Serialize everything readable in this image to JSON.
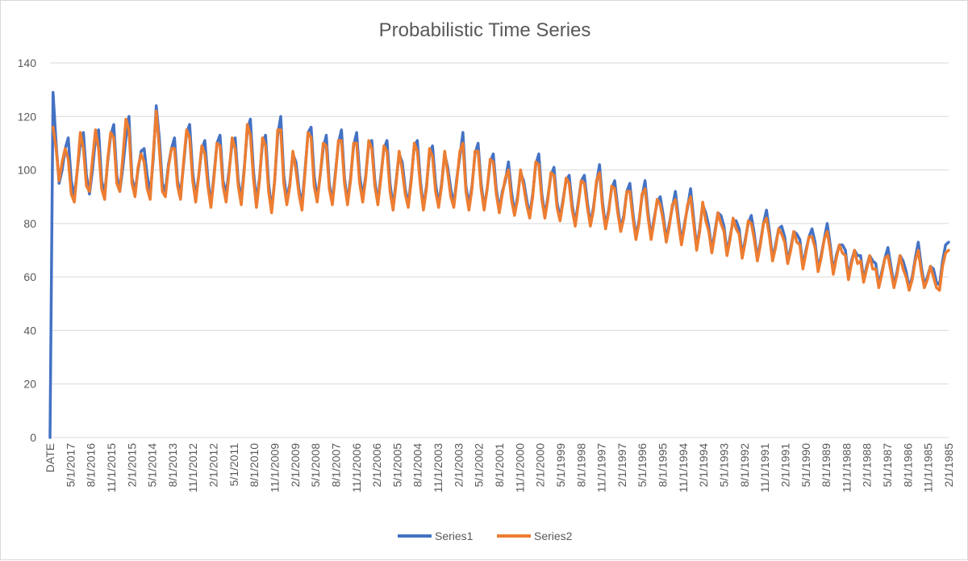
{
  "chart_data": {
    "type": "line",
    "title": "Probabilistic Time Series",
    "xlabel": "",
    "ylabel": "",
    "ylim": [
      0,
      140
    ],
    "y_ticks": [
      0,
      20,
      40,
      60,
      80,
      100,
      120,
      140
    ],
    "grid": true,
    "legend": "bottom",
    "x_tick_labels": [
      "DATE",
      "5/1/2017",
      "8/1/2016",
      "11/1/2015",
      "2/1/2015",
      "5/1/2014",
      "8/1/2013",
      "11/1/2012",
      "2/1/2012",
      "5/1/2011",
      "8/1/2010",
      "11/1/2009",
      "2/1/2009",
      "5/1/2008",
      "8/1/2007",
      "11/1/2006",
      "2/1/2006",
      "5/1/2005",
      "8/1/2004",
      "11/1/2003",
      "2/1/2003",
      "5/1/2002",
      "8/1/2001",
      "11/1/2000",
      "2/1/2000",
      "5/1/1999",
      "8/1/1998",
      "11/1/1997",
      "2/1/1997",
      "5/1/1996",
      "8/1/1995",
      "11/1/1994",
      "2/1/1994",
      "5/1/1993",
      "8/1/1992",
      "11/1/1991",
      "2/1/1991",
      "5/1/1990",
      "8/1/1989",
      "11/1/1988",
      "2/1/1988",
      "5/1/1987",
      "8/1/1986",
      "11/1/1985",
      "2/1/1985"
    ],
    "series": [
      {
        "name": "Series1",
        "color": "#4472C4",
        "values": [
          0,
          129,
          110,
          95,
          100,
          108,
          112,
          96,
          90,
          100,
          110,
          114,
          98,
          91,
          100,
          112,
          115,
          96,
          91,
          103,
          113,
          117,
          98,
          92,
          101,
          112,
          120,
          97,
          92,
          100,
          107,
          108,
          98,
          91,
          104,
          124,
          112,
          95,
          92,
          102,
          108,
          112,
          96,
          91,
          102,
          114,
          117,
          99,
          90,
          98,
          108,
          111,
          97,
          87,
          98,
          110,
          113,
          96,
          91,
          100,
          110,
          112,
          96,
          89,
          101,
          115,
          119,
          100,
          88,
          97,
          110,
          113,
          95,
          85,
          96,
          113,
          120,
          98,
          89,
          95,
          106,
          103,
          93,
          87,
          100,
          114,
          116,
          98,
          89,
          98,
          108,
          113,
          95,
          88,
          99,
          110,
          115,
          97,
          88,
          97,
          109,
          114,
          98,
          90,
          98,
          110,
          111,
          96,
          88,
          98,
          108,
          111,
          95,
          86,
          96,
          106,
          103,
          93,
          87,
          97,
          109,
          111,
          96,
          86,
          94,
          106,
          109,
          95,
          87,
          95,
          106,
          101,
          93,
          87,
          97,
          105,
          114,
          94,
          87,
          94,
          106,
          110,
          95,
          86,
          93,
          103,
          106,
          93,
          85,
          92,
          96,
          103,
          92,
          84,
          90,
          99,
          96,
          89,
          83,
          91,
          102,
          106,
          91,
          83,
          90,
          98,
          101,
          88,
          82,
          89,
          96,
          98,
          87,
          80,
          88,
          96,
          98,
          88,
          80,
          86,
          95,
          102,
          88,
          79,
          85,
          93,
          96,
          86,
          78,
          83,
          92,
          95,
          84,
          75,
          81,
          90,
          96,
          84,
          75,
          82,
          88,
          90,
          83,
          74,
          80,
          86,
          92,
          82,
          73,
          80,
          86,
          93,
          82,
          71,
          78,
          87,
          84,
          79,
          70,
          77,
          84,
          83,
          79,
          69,
          75,
          81,
          81,
          78,
          68,
          74,
          80,
          83,
          76,
          67,
          73,
          80,
          85,
          77,
          67,
          72,
          78,
          79,
          75,
          66,
          71,
          77,
          76,
          74,
          64,
          70,
          75,
          78,
          73,
          63,
          68,
          74,
          80,
          72,
          62,
          68,
          72,
          72,
          70,
          60,
          66,
          70,
          68,
          68,
          59,
          64,
          68,
          66,
          65,
          57,
          62,
          67,
          71,
          64,
          57,
          62,
          68,
          66,
          62,
          56,
          60,
          67,
          73,
          64,
          57,
          60,
          64,
          63,
          58,
          57,
          66,
          72,
          73
        ]
      },
      {
        "name": "Series2",
        "color": "#ED7D31",
        "values": [
          null,
          116,
          108,
          96,
          103,
          108,
          104,
          91,
          88,
          100,
          114,
          108,
          94,
          92,
          104,
          115,
          108,
          93,
          89,
          104,
          114,
          112,
          95,
          92,
          105,
          119,
          115,
          95,
          90,
          101,
          106,
          103,
          93,
          89,
          106,
          122,
          108,
          92,
          90,
          101,
          108,
          108,
          94,
          89,
          103,
          115,
          112,
          96,
          88,
          98,
          109,
          106,
          94,
          86,
          97,
          110,
          109,
          94,
          88,
          99,
          112,
          108,
          94,
          87,
          100,
          117,
          113,
          97,
          86,
          96,
          112,
          109,
          92,
          84,
          96,
          115,
          115,
          95,
          87,
          94,
          107,
          100,
          91,
          85,
          99,
          114,
          112,
          94,
          88,
          98,
          110,
          109,
          93,
          87,
          98,
          111,
          111,
          95,
          87,
          96,
          110,
          110,
          95,
          88,
          97,
          111,
          108,
          94,
          87,
          97,
          109,
          107,
          92,
          85,
          95,
          107,
          100,
          91,
          86,
          96,
          110,
          107,
          94,
          85,
          93,
          108,
          105,
          92,
          86,
          94,
          107,
          99,
          90,
          86,
          96,
          107,
          110,
          92,
          85,
          93,
          107,
          107,
          93,
          85,
          93,
          104,
          103,
          91,
          84,
          91,
          97,
          100,
          89,
          83,
          89,
          100,
          94,
          87,
          82,
          90,
          103,
          102,
          89,
          82,
          89,
          99,
          98,
          86,
          81,
          88,
          97,
          95,
          85,
          79,
          87,
          96,
          95,
          86,
          79,
          85,
          96,
          99,
          86,
          78,
          84,
          94,
          93,
          84,
          77,
          82,
          92,
          92,
          82,
          74,
          80,
          91,
          93,
          82,
          74,
          81,
          89,
          87,
          81,
          73,
          79,
          87,
          89,
          80,
          72,
          79,
          87,
          90,
          80,
          70,
          77,
          88,
          81,
          77,
          69,
          76,
          84,
          80,
          77,
          68,
          74,
          82,
          78,
          76,
          67,
          73,
          81,
          80,
          74,
          66,
          72,
          80,
          82,
          75,
          66,
          71,
          78,
          76,
          73,
          65,
          70,
          77,
          73,
          72,
          63,
          69,
          75,
          75,
          71,
          62,
          67,
          74,
          77,
          70,
          61,
          67,
          72,
          69,
          68,
          59,
          65,
          70,
          65,
          66,
          58,
          63,
          68,
          63,
          63,
          56,
          61,
          67,
          68,
          62,
          56,
          61,
          68,
          63,
          60,
          55,
          59,
          66,
          70,
          62,
          56,
          59,
          64,
          60,
          56,
          55,
          64,
          69,
          70
        ]
      }
    ]
  }
}
